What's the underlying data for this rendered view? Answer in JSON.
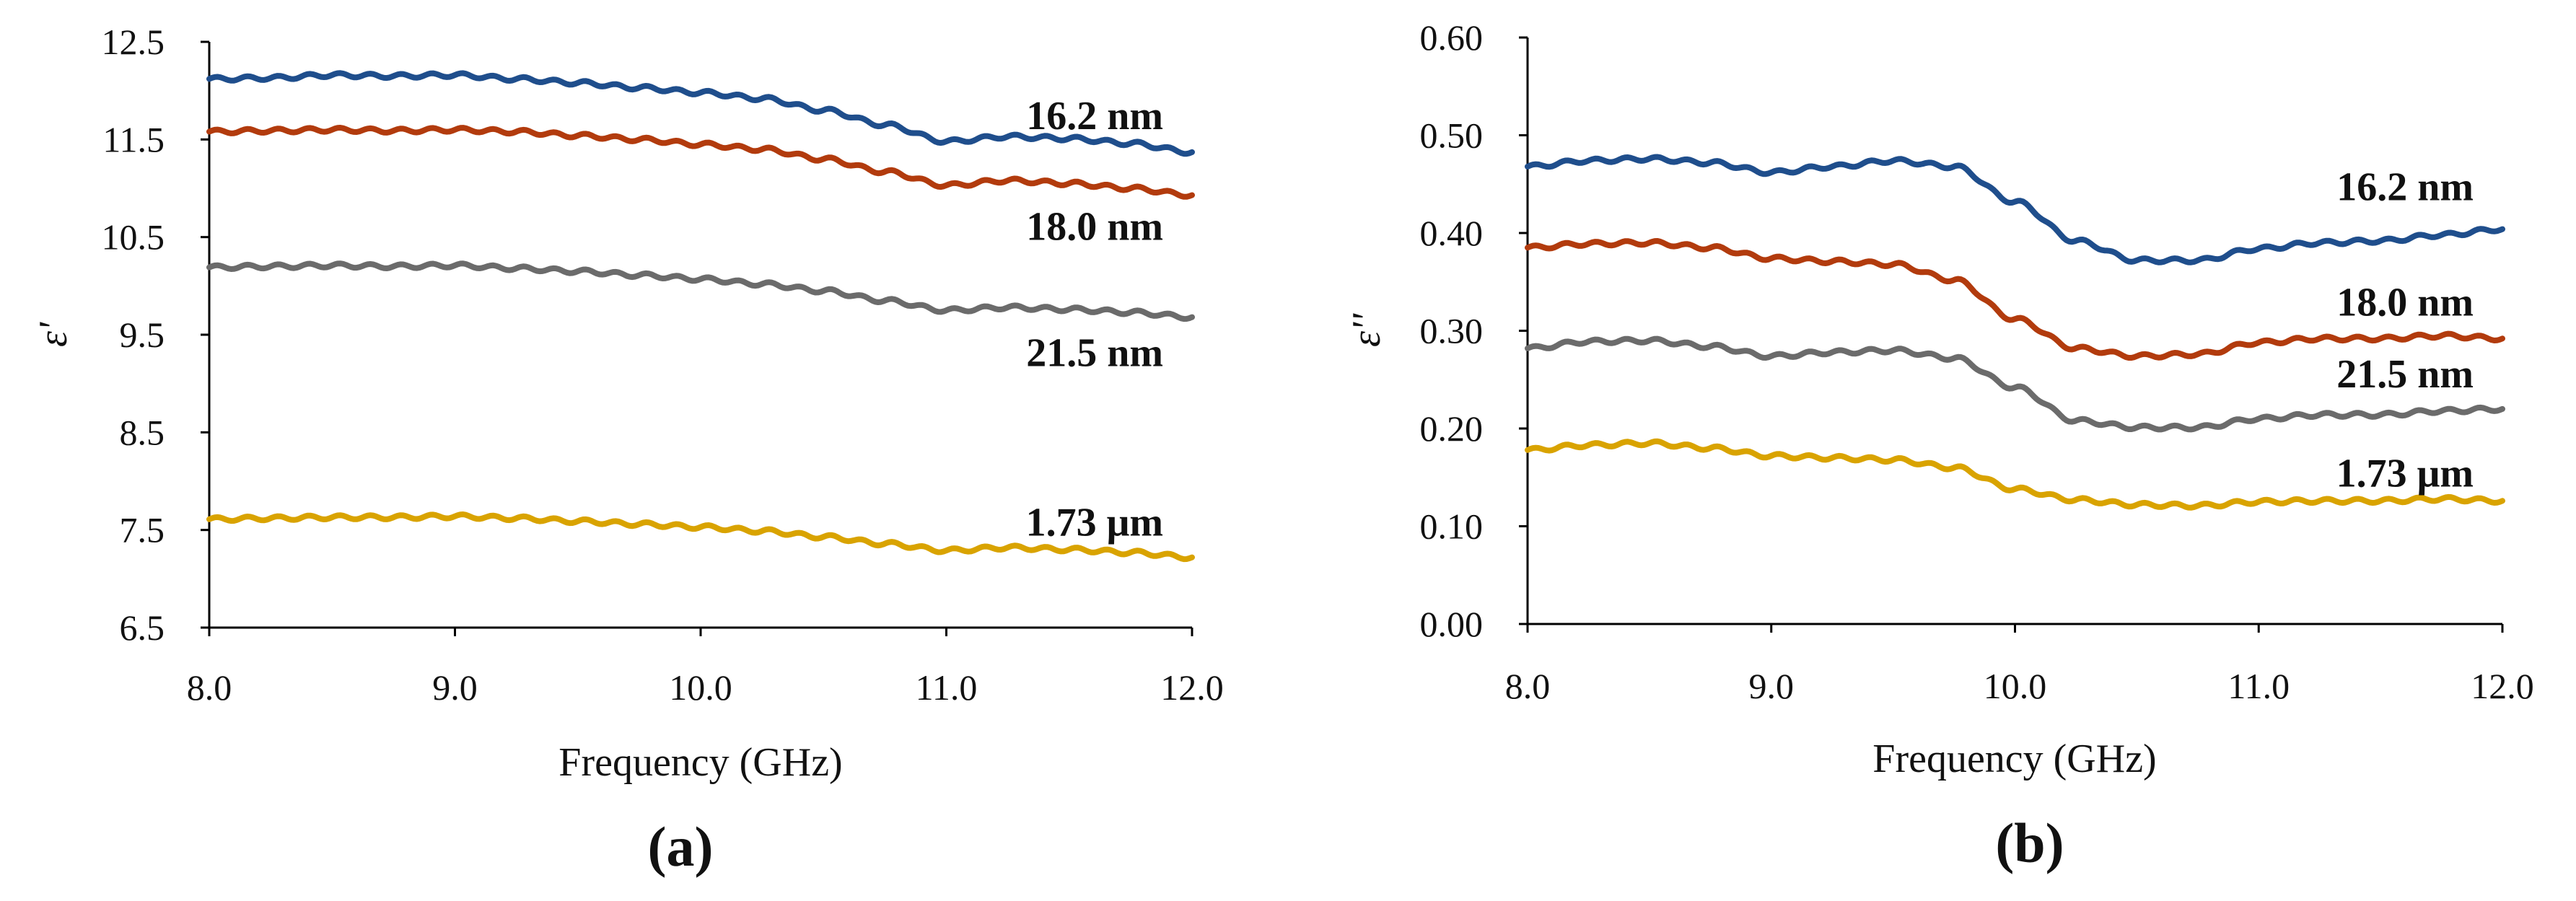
{
  "chart_data": [
    {
      "type": "line",
      "panel_label": "(a)",
      "title": "",
      "xlabel": "Frequency (GHz)",
      "ylabel": "ε'",
      "xlim": [
        8.0,
        12.0
      ],
      "ylim": [
        6.5,
        12.5
      ],
      "xticks": [
        8.0,
        9.0,
        10.0,
        11.0,
        12.0
      ],
      "xtick_labels": [
        "8.0",
        "9.0",
        "10.0",
        "11.0",
        "12.0"
      ],
      "yticks": [
        6.5,
        7.5,
        8.5,
        9.5,
        10.5,
        11.5,
        12.5
      ],
      "ytick_labels": [
        "6.5",
        "7.5",
        "8.5",
        "9.5",
        "10.5",
        "11.5",
        "12.5"
      ],
      "grid": false,
      "x": [
        8.0,
        8.25,
        8.5,
        8.75,
        9.0,
        9.25,
        9.5,
        9.75,
        10.0,
        10.25,
        10.5,
        10.75,
        11.0,
        11.25,
        11.5,
        11.75,
        12.0
      ],
      "series": [
        {
          "name": "16.2 nm",
          "label": "16.2 nm",
          "color": "#1f4e8c",
          "values": [
            12.12,
            12.13,
            12.16,
            12.15,
            12.16,
            12.12,
            12.08,
            12.03,
            11.98,
            11.92,
            11.8,
            11.65,
            11.48,
            11.53,
            11.51,
            11.46,
            11.37
          ]
        },
        {
          "name": "18.0 nm",
          "label": "18.0 nm",
          "color": "#b23b0d",
          "values": [
            11.58,
            11.59,
            11.6,
            11.59,
            11.6,
            11.58,
            11.54,
            11.5,
            11.45,
            11.4,
            11.3,
            11.17,
            11.03,
            11.08,
            11.05,
            11.0,
            10.93
          ]
        },
        {
          "name": "21.5 nm",
          "label": "21.5 nm",
          "color": "#6b6b6b",
          "values": [
            10.19,
            10.2,
            10.21,
            10.2,
            10.21,
            10.18,
            10.15,
            10.11,
            10.07,
            10.02,
            9.95,
            9.85,
            9.75,
            9.78,
            9.76,
            9.73,
            9.68
          ]
        },
        {
          "name": "1.73 μm",
          "label": "1.73 μm",
          "color": "#d9a300",
          "values": [
            7.61,
            7.62,
            7.63,
            7.63,
            7.64,
            7.62,
            7.59,
            7.56,
            7.53,
            7.49,
            7.43,
            7.36,
            7.29,
            7.32,
            7.3,
            7.27,
            7.22
          ]
        }
      ]
    },
    {
      "type": "line",
      "panel_label": "(b)",
      "title": "",
      "xlabel": "Frequency (GHz)",
      "ylabel": "ε''",
      "xlim": [
        8.0,
        12.0
      ],
      "ylim": [
        0.0,
        0.6
      ],
      "xticks": [
        8.0,
        9.0,
        10.0,
        11.0,
        12.0
      ],
      "xtick_labels": [
        "8.0",
        "9.0",
        "10.0",
        "11.0",
        "12.0"
      ],
      "yticks": [
        0.0,
        0.1,
        0.2,
        0.3,
        0.4,
        0.5,
        0.6
      ],
      "ytick_labels": [
        "0.00",
        "0.10",
        "0.20",
        "0.30",
        "0.40",
        "0.50",
        "0.60"
      ],
      "grid": false,
      "x": [
        8.0,
        8.25,
        8.5,
        8.75,
        9.0,
        9.25,
        9.5,
        9.75,
        10.0,
        10.25,
        10.5,
        10.75,
        11.0,
        11.25,
        11.5,
        11.75,
        12.0
      ],
      "series": [
        {
          "name": "16.2 nm",
          "label": "16.2 nm",
          "color": "#1f4e8c",
          "values": [
            0.468,
            0.474,
            0.476,
            0.472,
            0.462,
            0.468,
            0.474,
            0.468,
            0.432,
            0.392,
            0.372,
            0.372,
            0.384,
            0.39,
            0.392,
            0.398,
            0.404
          ]
        },
        {
          "name": "18.0 nm",
          "label": "18.0 nm",
          "color": "#b23b0d",
          "values": [
            0.385,
            0.389,
            0.39,
            0.385,
            0.374,
            0.371,
            0.368,
            0.352,
            0.312,
            0.282,
            0.274,
            0.276,
            0.288,
            0.292,
            0.292,
            0.295,
            0.292
          ]
        },
        {
          "name": "21.5 nm",
          "label": "21.5 nm",
          "color": "#6b6b6b",
          "values": [
            0.282,
            0.289,
            0.29,
            0.284,
            0.274,
            0.278,
            0.28,
            0.272,
            0.242,
            0.208,
            0.201,
            0.201,
            0.21,
            0.214,
            0.214,
            0.218,
            0.22
          ]
        },
        {
          "name": "1.73 μm",
          "label": "1.73 μm",
          "color": "#d9a300",
          "values": [
            0.178,
            0.183,
            0.185,
            0.18,
            0.172,
            0.17,
            0.168,
            0.16,
            0.138,
            0.127,
            0.122,
            0.121,
            0.125,
            0.126,
            0.126,
            0.128,
            0.126
          ]
        }
      ]
    }
  ]
}
